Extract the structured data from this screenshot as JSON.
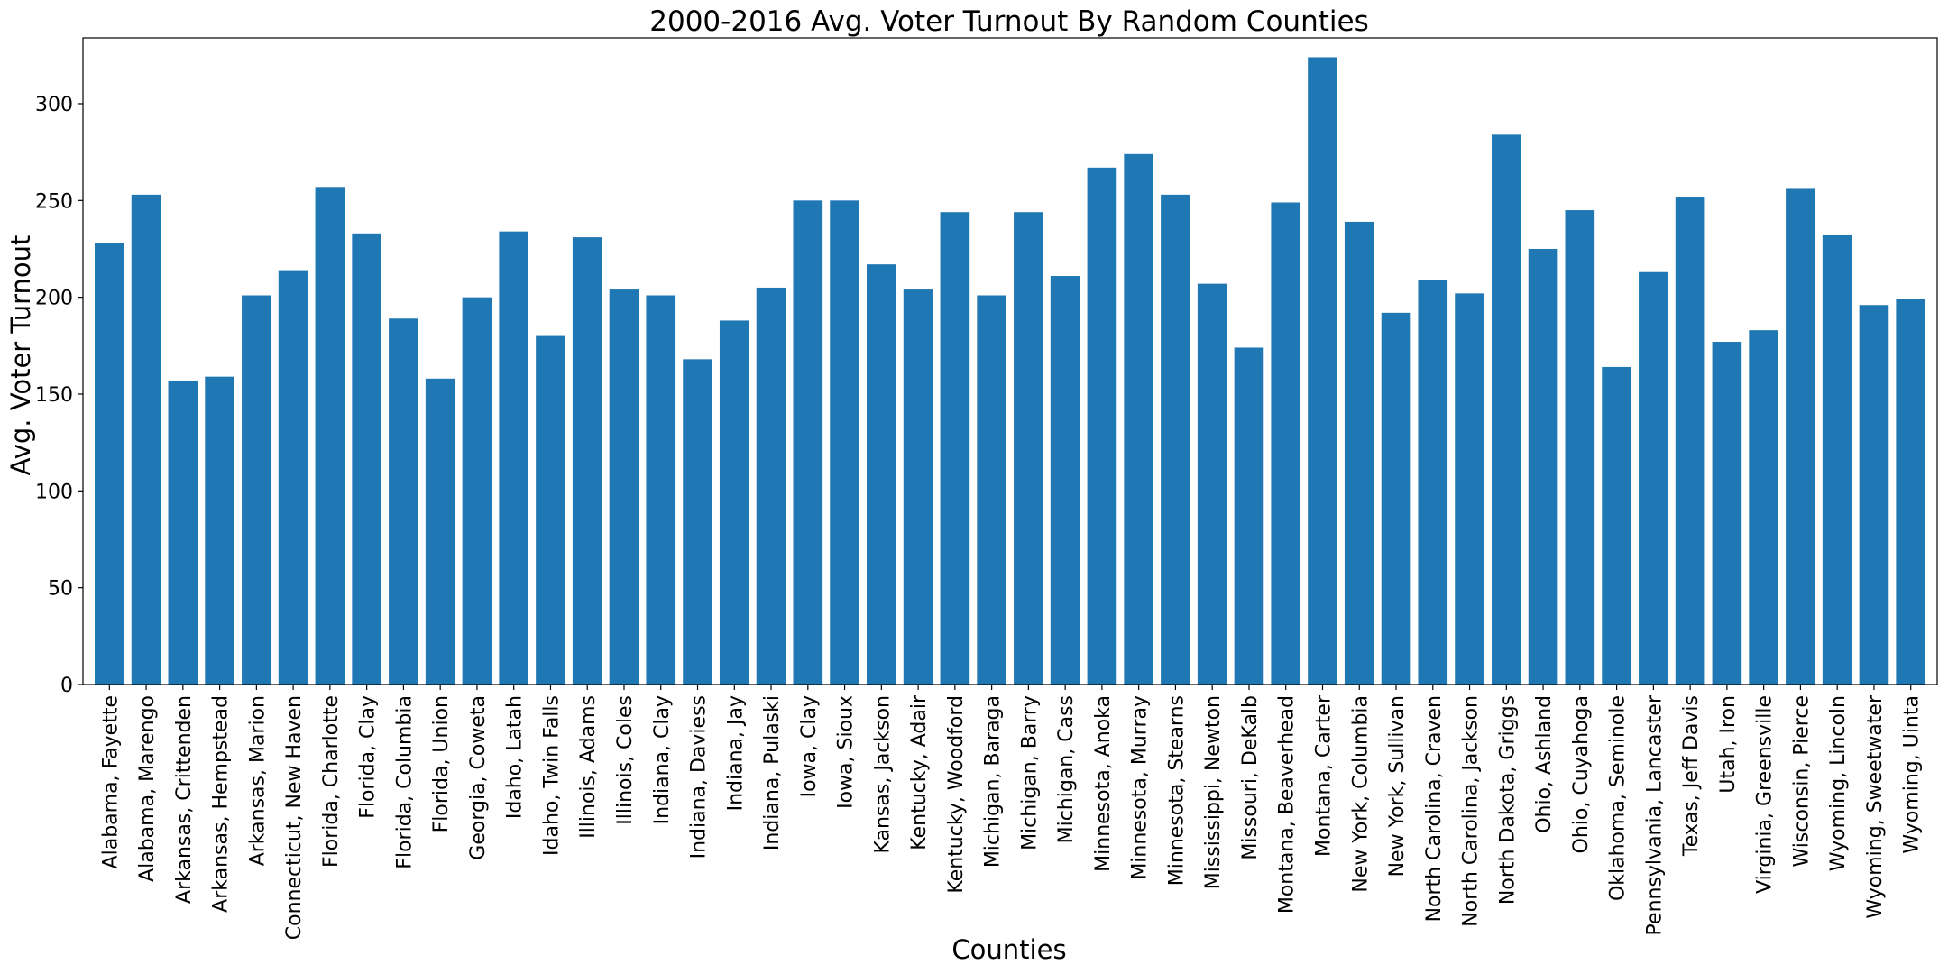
{
  "chart_data": {
    "type": "bar",
    "title": "2000-2016 Avg. Voter Turnout By Random Counties",
    "xlabel": "Counties",
    "ylabel": "Avg. Voter Turnout",
    "ylim": [
      0,
      334
    ],
    "yticks": [
      0,
      50,
      100,
      150,
      200,
      250,
      300
    ],
    "grid": false,
    "bar_color": "#1f77b4",
    "categories": [
      "Alabama, Fayette",
      "Alabama, Marengo",
      "Arkansas, Crittenden",
      "Arkansas, Hempstead",
      "Arkansas, Marion",
      "Connecticut, New Haven",
      "Florida, Charlotte",
      "Florida, Clay",
      "Florida, Columbia",
      "Florida, Union",
      "Georgia, Coweta",
      "Idaho, Latah",
      "Idaho, Twin Falls",
      "Illinois, Adams",
      "Illinois, Coles",
      "Indiana, Clay",
      "Indiana, Daviess",
      "Indiana, Jay",
      "Indiana, Pulaski",
      "Iowa, Clay",
      "Iowa, Sioux",
      "Kansas, Jackson",
      "Kentucky, Adair",
      "Kentucky, Woodford",
      "Michigan, Baraga",
      "Michigan, Barry",
      "Michigan, Cass",
      "Minnesota, Anoka",
      "Minnesota, Murray",
      "Minnesota, Stearns",
      "Mississippi, Newton",
      "Missouri, DeKalb",
      "Montana, Beaverhead",
      "Montana, Carter",
      "New York, Columbia",
      "New York, Sullivan",
      "North Carolina, Craven",
      "North Carolina, Jackson",
      "North Dakota, Griggs",
      "Ohio, Ashland",
      "Ohio, Cuyahoga",
      "Oklahoma, Seminole",
      "Pennsylvania, Lancaster",
      "Texas, Jeff Davis",
      "Utah, Iron",
      "Virginia, Greensville",
      "Wisconsin, Pierce",
      "Wyoming, Lincoln",
      "Wyoming, Sweetwater",
      "Wyoming, Uinta"
    ],
    "values": [
      228,
      253,
      157,
      159,
      201,
      214,
      257,
      233,
      189,
      158,
      200,
      234,
      180,
      231,
      204,
      201,
      168,
      188,
      205,
      250,
      250,
      217,
      204,
      244,
      201,
      244,
      211,
      267,
      274,
      253,
      207,
      174,
      249,
      324,
      239,
      192,
      209,
      202,
      284,
      225,
      245,
      164,
      213,
      252,
      177,
      183,
      256,
      232,
      196,
      199
    ]
  }
}
